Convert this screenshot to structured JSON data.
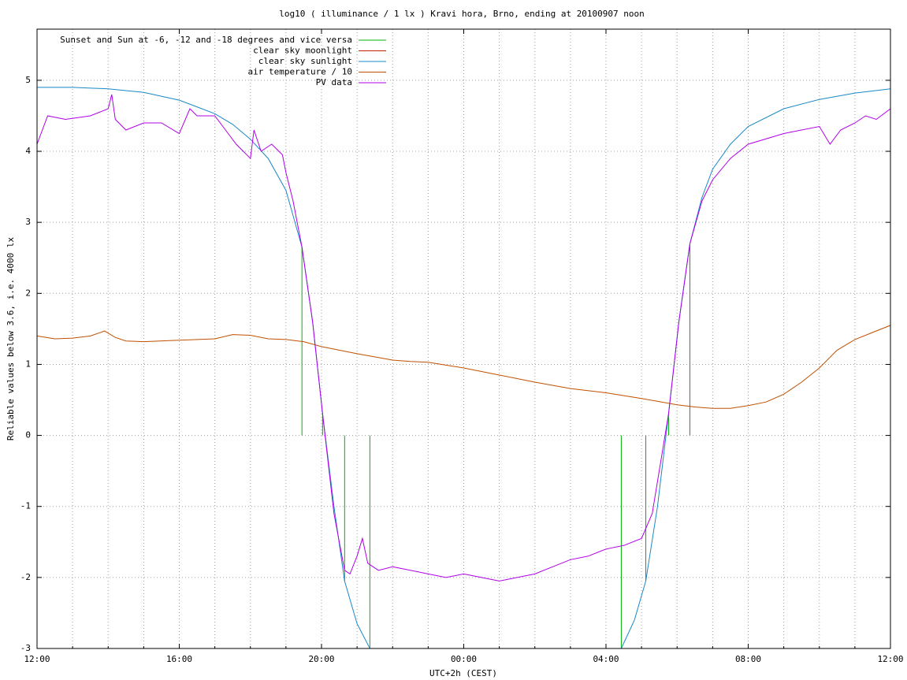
{
  "chart_data": {
    "type": "line",
    "title": "log10 ( illuminance / 1 lx ) Kravi hora, Brno, ending at 20100907 noon",
    "x_label": "UTC+2h (CEST)",
    "y_label": "Reliable values below 3.6, i.e. 4000 lx",
    "xlim": [
      0,
      24
    ],
    "xticks": [
      {
        "value": 0,
        "label": "12:00"
      },
      {
        "value": 4,
        "label": "16:00"
      },
      {
        "value": 8,
        "label": "20:00"
      },
      {
        "value": 12,
        "label": "00:00"
      },
      {
        "value": 16,
        "label": "04:00"
      },
      {
        "value": 20,
        "label": "08:00"
      },
      {
        "value": 24,
        "label": "12:00"
      }
    ],
    "xminorticks": [
      1,
      2,
      3,
      5,
      6,
      7,
      9,
      10,
      11,
      13,
      14,
      15,
      17,
      18,
      19,
      21,
      22,
      23
    ],
    "ylim": [
      -3,
      5.72
    ],
    "yticks": [
      -3,
      -2,
      -1,
      0,
      1,
      2,
      3,
      4,
      5
    ],
    "grid": true,
    "legend": "top-left",
    "series": [
      {
        "name": "Sunset and Sun at -6, -12 and -18 degrees and vice versa",
        "color": "#00b000",
        "style": "impulses",
        "x": [
          7.45,
          8.03,
          8.65,
          9.36,
          16.43,
          17.12,
          17.76,
          18.36
        ],
        "values": [
          2.65,
          0.3,
          -2.05,
          -3,
          -3,
          -2.05,
          0.3,
          2.7
        ]
      },
      {
        "name": "clear sky moonlight",
        "color": "#c02000",
        "style": "lines",
        "x": [],
        "values": []
      },
      {
        "name": "clear sky sunlight",
        "color": "#1a88c8",
        "style": "lines",
        "x": [
          0,
          1,
          2,
          3,
          4,
          5,
          5.5,
          6,
          6.5,
          7,
          7.45,
          7.75,
          8.03,
          8.35,
          8.65,
          9.0,
          9.36,
          12,
          16.43,
          16.8,
          17.12,
          17.45,
          17.76,
          18.05,
          18.36,
          18.7,
          19,
          19.5,
          20,
          21,
          22,
          23,
          24
        ],
        "values": [
          4.9,
          4.9,
          4.88,
          4.83,
          4.72,
          4.53,
          4.38,
          4.17,
          3.9,
          3.45,
          2.65,
          1.6,
          0.3,
          -1.0,
          -2.05,
          -2.65,
          -3,
          null,
          -3,
          -2.6,
          -2.05,
          -1.0,
          0.3,
          1.6,
          2.7,
          3.35,
          3.75,
          4.1,
          4.35,
          4.6,
          4.73,
          4.82,
          4.88
        ]
      },
      {
        "name": "air temperature / 10",
        "color": "#c05000",
        "style": "lines",
        "x": [
          0,
          0.5,
          1,
          1.5,
          1.9,
          2.2,
          2.5,
          3,
          4,
          5,
          5.5,
          6,
          6.5,
          7,
          7.5,
          8,
          9,
          10,
          10.5,
          11,
          12,
          13,
          14,
          15,
          16,
          17,
          18,
          18.5,
          19,
          19.5,
          20,
          20.5,
          21,
          21.5,
          22,
          22.5,
          23,
          23.5,
          24
        ],
        "values": [
          1.4,
          1.36,
          1.37,
          1.4,
          1.47,
          1.38,
          1.33,
          1.32,
          1.34,
          1.36,
          1.42,
          1.41,
          1.36,
          1.35,
          1.32,
          1.25,
          1.15,
          1.06,
          1.04,
          1.03,
          0.95,
          0.85,
          0.75,
          0.66,
          0.6,
          0.52,
          0.43,
          0.4,
          0.38,
          0.38,
          0.42,
          0.47,
          0.58,
          0.75,
          0.95,
          1.2,
          1.35,
          1.45,
          1.55
        ]
      },
      {
        "name": "PV data",
        "color": "#b000e8",
        "style": "lines",
        "x": [
          0,
          0.3,
          0.8,
          1.5,
          2.0,
          2.1,
          2.2,
          2.5,
          3.0,
          3.5,
          4.0,
          4.3,
          4.5,
          5.0,
          5.3,
          5.6,
          6.0,
          6.1,
          6.3,
          6.6,
          6.9,
          7.0,
          7.2,
          7.45,
          7.75,
          8.03,
          8.35,
          8.65,
          8.8,
          9.0,
          9.15,
          9.3,
          9.6,
          10,
          10.5,
          11,
          11.5,
          12,
          12.5,
          13,
          13.5,
          14,
          14.5,
          15,
          15.5,
          16,
          16.5,
          17,
          17.3,
          17.76,
          18.05,
          18.36,
          18.7,
          19,
          19.5,
          20,
          21,
          22,
          22.3,
          22.6,
          23,
          23.3,
          23.6,
          24
        ],
        "values": [
          4.1,
          4.5,
          4.45,
          4.5,
          4.6,
          4.8,
          4.45,
          4.3,
          4.4,
          4.4,
          4.25,
          4.6,
          4.5,
          4.5,
          4.3,
          4.1,
          3.9,
          4.3,
          4.0,
          4.1,
          3.95,
          3.7,
          3.3,
          2.65,
          1.6,
          0.3,
          -1.1,
          -1.9,
          -1.95,
          -1.7,
          -1.45,
          -1.8,
          -1.9,
          -1.85,
          -1.9,
          -1.95,
          -2.0,
          -1.95,
          -2.0,
          -2.05,
          -2.0,
          -1.95,
          -1.85,
          -1.75,
          -1.7,
          -1.6,
          -1.55,
          -1.45,
          -1.1,
          0.3,
          1.6,
          2.7,
          3.3,
          3.6,
          3.9,
          4.1,
          4.25,
          4.35,
          4.1,
          4.3,
          4.4,
          4.5,
          4.45,
          4.6
        ]
      }
    ]
  }
}
